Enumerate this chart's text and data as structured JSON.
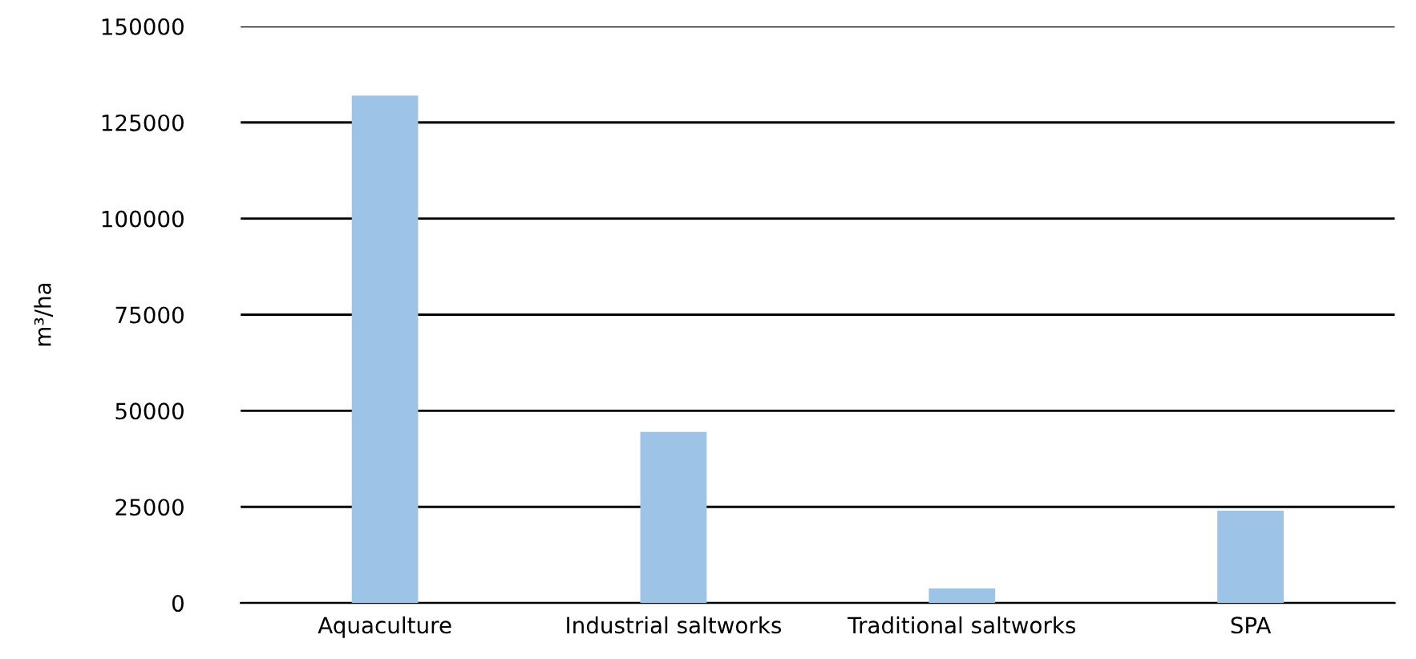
{
  "chart_data": {
    "type": "bar",
    "ylabel": "m³/ha",
    "categories": [
      "Aquaculture",
      "Industrial saltworks",
      "Traditional saltworks",
      "SPA"
    ],
    "values": [
      132000,
      44500,
      3800,
      24000
    ],
    "color": "#9dc3e6",
    "ylim": [
      0,
      150000
    ],
    "yticks": [
      0,
      25000,
      50000,
      75000,
      100000,
      125000,
      150000
    ],
    "grid": "y"
  }
}
